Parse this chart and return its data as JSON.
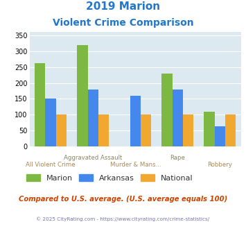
{
  "title_line1": "2019 Marion",
  "title_line2": "Violent Crime Comparison",
  "categories": [
    "All Violent Crime",
    "Aggravated Assault",
    "Murder & Mans...",
    "Rape",
    "Robbery"
  ],
  "top_labels": [
    "",
    "Aggravated Assault",
    "",
    "Rape",
    ""
  ],
  "bottom_labels": [
    "All Violent Crime",
    "",
    "Murder & Mans...",
    "",
    "Robbery"
  ],
  "series": {
    "Marion": [
      262,
      320,
      0,
      230,
      110
    ],
    "Arkansas": [
      152,
      180,
      160,
      180,
      63
    ],
    "National": [
      100,
      100,
      100,
      100,
      100
    ]
  },
  "colors": {
    "Marion": "#7db843",
    "Arkansas": "#4488ee",
    "National": "#f0a830"
  },
  "ylim": [
    0,
    360
  ],
  "yticks": [
    0,
    50,
    100,
    150,
    200,
    250,
    300,
    350
  ],
  "plot_bg": "#dce9f0",
  "title_color": "#2277cc",
  "top_label_color": "#888866",
  "bottom_label_color": "#aa8855",
  "legend_text_color": "#333333",
  "footer_text": "Compared to U.S. average. (U.S. average equals 100)",
  "copyright_text": "© 2025 CityRating.com - https://www.cityrating.com/crime-statistics/",
  "footer_color": "#cc4400",
  "copyright_color": "#7777aa"
}
